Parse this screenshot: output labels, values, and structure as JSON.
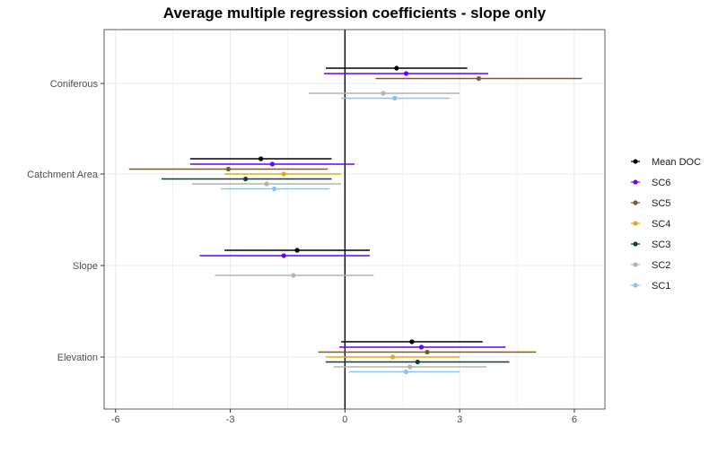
{
  "chart_data": {
    "type": "scatter",
    "subtype": "coefficient-plot-with-intervals",
    "title": "Average multiple regression coefficients - slope only",
    "xlabel": "",
    "ylabel": "",
    "xlim": [
      -6.3,
      6.8
    ],
    "x_ticks": [
      "-6",
      "-3",
      "0",
      "3",
      "6"
    ],
    "x_tick_values": [
      -6,
      -3,
      0,
      3,
      6
    ],
    "categories": [
      "Coniferous",
      "Catchment Area",
      "Slope",
      "Elevation"
    ],
    "reference_line": 0,
    "grid": true,
    "legend_position": "right",
    "series": [
      {
        "name": "Mean DOC",
        "color": "#000000",
        "points": [
          {
            "category": "Coniferous",
            "estimate": 1.35,
            "lower": -0.5,
            "upper": 3.2
          },
          {
            "category": "Catchment Area",
            "estimate": -2.2,
            "lower": -4.05,
            "upper": -0.35
          },
          {
            "category": "Slope",
            "estimate": -1.25,
            "lower": -3.15,
            "upper": 0.65
          },
          {
            "category": "Elevation",
            "estimate": 1.75,
            "lower": -0.1,
            "upper": 3.6
          }
        ]
      },
      {
        "name": "SC6",
        "color": "#6600ff",
        "points": [
          {
            "category": "Coniferous",
            "estimate": 1.6,
            "lower": -0.55,
            "upper": 3.75
          },
          {
            "category": "Catchment Area",
            "estimate": -1.9,
            "lower": -4.05,
            "upper": 0.25
          },
          {
            "category": "Slope",
            "estimate": -1.6,
            "lower": -3.8,
            "upper": 0.65
          },
          {
            "category": "Elevation",
            "estimate": 2.0,
            "lower": -0.15,
            "upper": 4.2
          }
        ]
      },
      {
        "name": "SC5",
        "color": "#7a5a2e",
        "points": [
          {
            "category": "Coniferous",
            "estimate": 3.5,
            "lower": 0.8,
            "upper": 6.2
          },
          {
            "category": "Catchment Area",
            "estimate": -3.05,
            "lower": -5.65,
            "upper": -0.45
          },
          {
            "category": "Elevation",
            "estimate": 2.15,
            "lower": -0.7,
            "upper": 5.0
          }
        ]
      },
      {
        "name": "SC4",
        "color": "#e6a817",
        "points": [
          {
            "category": "Catchment Area",
            "estimate": -1.6,
            "lower": -3.15,
            "upper": -0.1
          },
          {
            "category": "Elevation",
            "estimate": 1.25,
            "lower": -0.5,
            "upper": 3.0
          }
        ]
      },
      {
        "name": "SC3",
        "color": "#0e3d3d",
        "points": [
          {
            "category": "Catchment Area",
            "estimate": -2.6,
            "lower": -4.8,
            "upper": -0.35
          },
          {
            "category": "Elevation",
            "estimate": 1.9,
            "lower": -0.5,
            "upper": 4.3
          }
        ]
      },
      {
        "name": "SC2",
        "color": "#b3b3b3",
        "points": [
          {
            "category": "Coniferous",
            "estimate": 1.0,
            "lower": -0.95,
            "upper": 3.0
          },
          {
            "category": "Catchment Area",
            "estimate": -2.05,
            "lower": -4.0,
            "upper": -0.1
          },
          {
            "category": "Slope",
            "estimate": -1.35,
            "lower": -3.4,
            "upper": 0.75
          },
          {
            "category": "Elevation",
            "estimate": 1.7,
            "lower": -0.3,
            "upper": 3.7
          }
        ]
      },
      {
        "name": "SC1",
        "color": "#8fc1f0",
        "points": [
          {
            "category": "Coniferous",
            "estimate": 1.3,
            "lower": -0.1,
            "upper": 2.75
          },
          {
            "category": "Catchment Area",
            "estimate": -1.85,
            "lower": -3.25,
            "upper": -0.4
          },
          {
            "category": "Elevation",
            "estimate": 1.6,
            "lower": 0.1,
            "upper": 3.0
          }
        ]
      }
    ]
  },
  "colors": {
    "panel_border": "#333333",
    "grid": "#ebebeb",
    "background": "#ffffff"
  }
}
